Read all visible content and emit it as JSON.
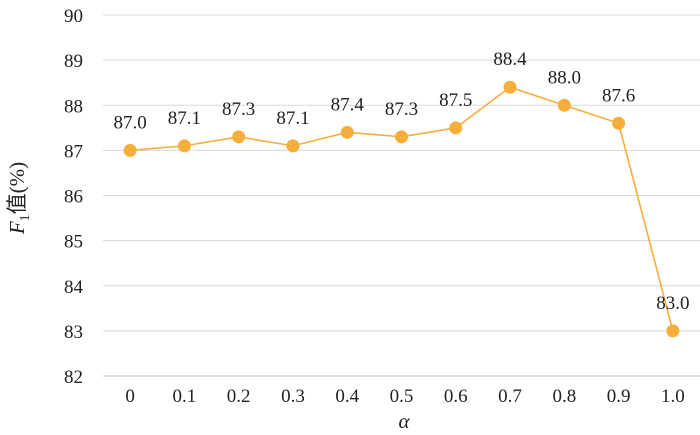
{
  "chart_data": {
    "type": "line",
    "x": [
      "0",
      "0.1",
      "0.2",
      "0.3",
      "0.4",
      "0.5",
      "0.6",
      "0.7",
      "0.8",
      "0.9",
      "1.0"
    ],
    "series": [
      {
        "values": [
          87.0,
          87.1,
          87.3,
          87.1,
          87.4,
          87.3,
          87.5,
          88.4,
          88.0,
          87.6,
          83.0
        ],
        "labels": [
          "87.0",
          "87.1",
          "87.3",
          "87.1",
          "87.4",
          "87.3",
          "87.5",
          "88.4",
          "88.0",
          "87.6",
          "83.0"
        ]
      }
    ],
    "xlabel": "α",
    "ylabel": {
      "main": "F",
      "sub": "1",
      "rest": "值(%)"
    },
    "ylim": [
      82,
      90
    ],
    "yticks": [
      "82",
      "83",
      "84",
      "85",
      "86",
      "87",
      "88",
      "89",
      "90"
    ],
    "grid": true,
    "colors": {
      "series": "#F5AE3C",
      "grid": "#d9d9d9",
      "axis": "#bfbfbf"
    }
  }
}
